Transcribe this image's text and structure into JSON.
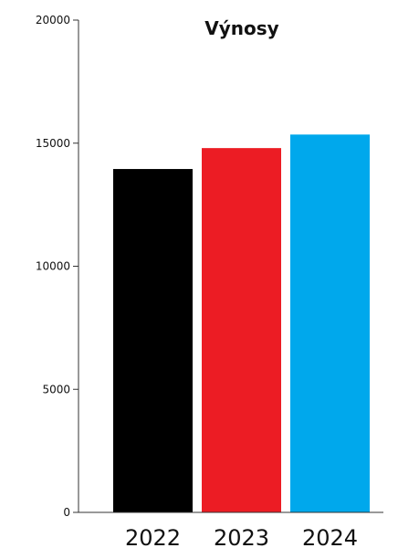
{
  "chart_data": {
    "type": "bar",
    "title": "Výnosy",
    "categories": [
      "2022",
      "2023",
      "2024"
    ],
    "values": [
      13950,
      14800,
      15350
    ],
    "colors": [
      "#000000",
      "#ec1c24",
      "#00a8ec"
    ],
    "ylim": [
      0,
      20000
    ],
    "yticks": [
      "0",
      "5000",
      "10000",
      "15000",
      "20000"
    ],
    "grid": false,
    "legend": "none"
  }
}
